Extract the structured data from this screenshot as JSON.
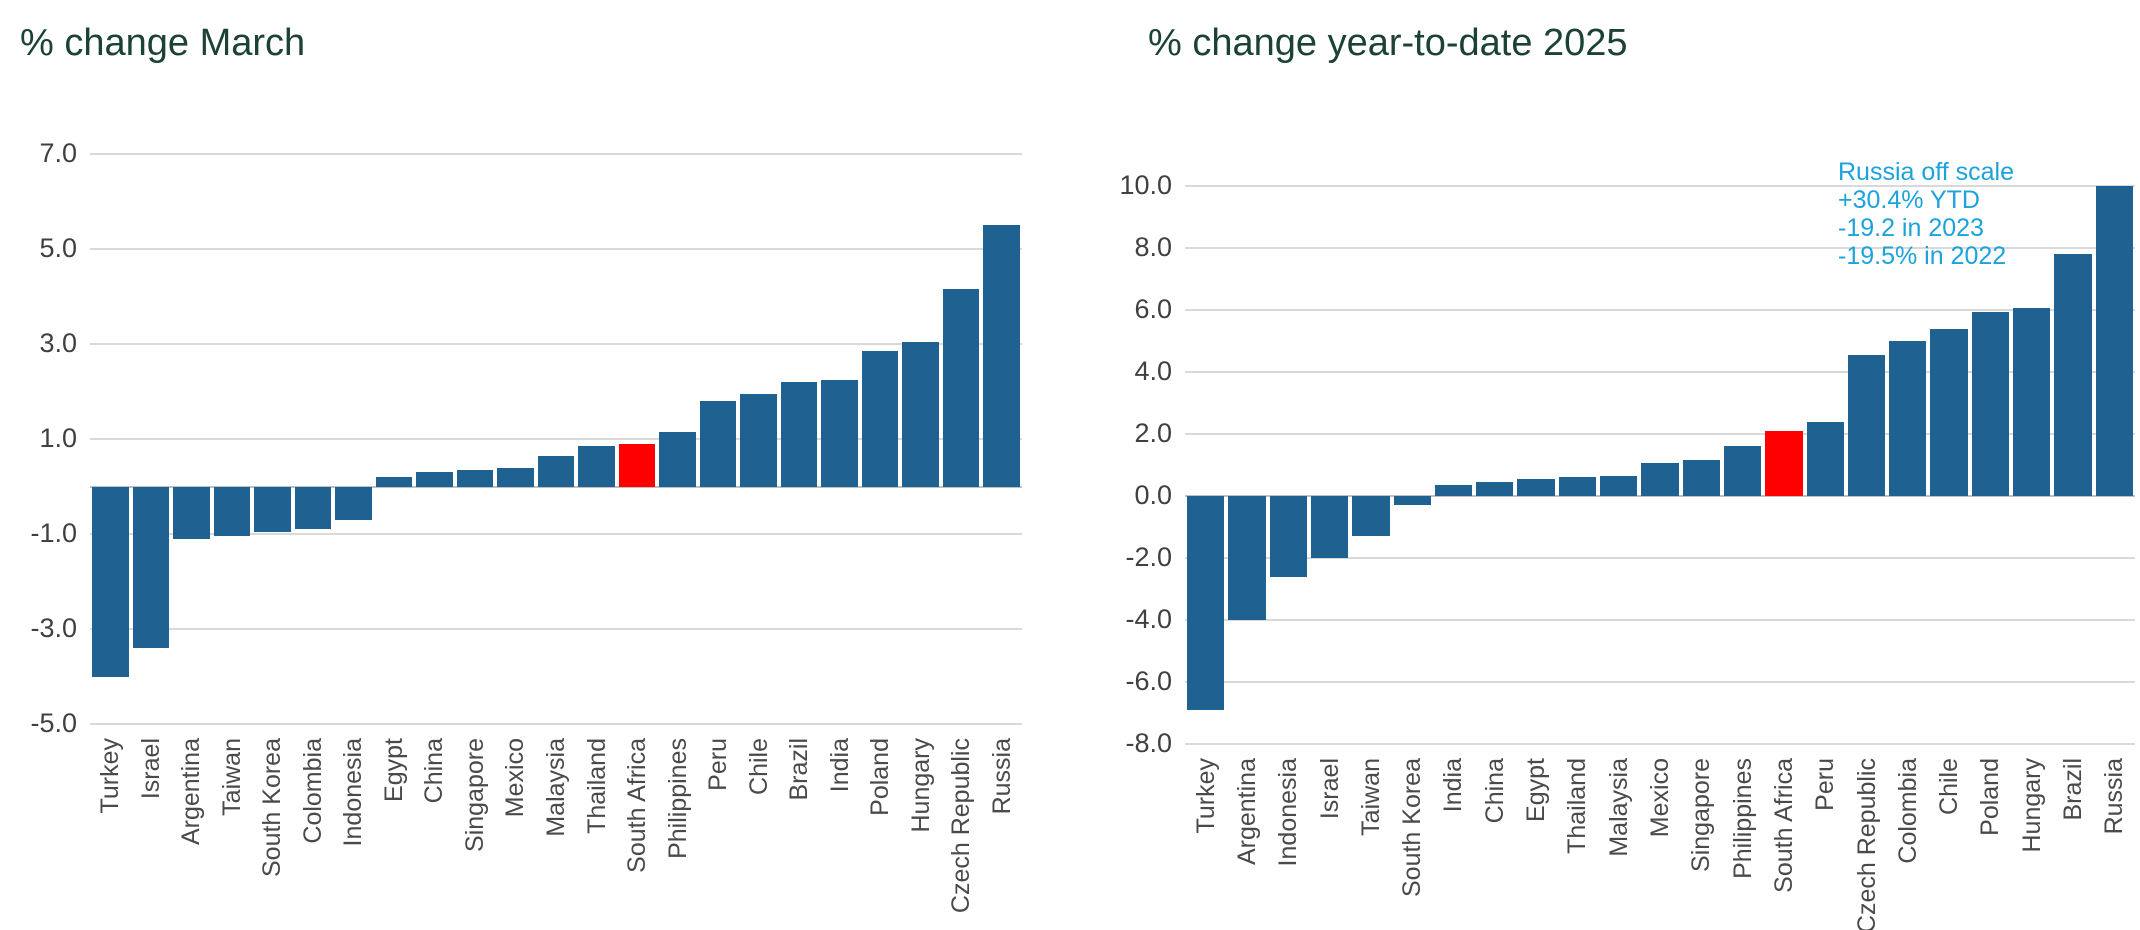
{
  "page": {
    "background": "#ffffff",
    "title_color": "#1c4233",
    "axis_text_color": "#404040",
    "category_text_color": "#4a4a4a",
    "gridline_color": "#d9d9d9",
    "zero_line_color": "#c0c0c0"
  },
  "chart_data": [
    {
      "type": "bar",
      "title": "% change March",
      "categories": [
        "Turkey",
        "Israel",
        "Argentina",
        "Taiwan",
        "South Korea",
        "Colombia",
        "Indonesia",
        "Egypt",
        "China",
        "Singapore",
        "Mexico",
        "Malaysia",
        "Thailand",
        "South Africa",
        "Philippines",
        "Peru",
        "Chile",
        "Brazil",
        "India",
        "Poland",
        "Hungary",
        "Czech Republic",
        "Russia"
      ],
      "values": [
        -4.0,
        -3.4,
        -1.1,
        -1.05,
        -0.95,
        -0.9,
        -0.7,
        0.2,
        0.3,
        0.35,
        0.4,
        0.65,
        0.85,
        0.9,
        1.15,
        1.8,
        1.95,
        2.2,
        2.25,
        2.85,
        3.05,
        4.15,
        5.5
      ],
      "highlight_category": "South Africa",
      "bar_color": "#1f6191",
      "highlight_color": "#fe0000",
      "ylim": [
        -5.0,
        7.0
      ],
      "yticks": [
        7.0,
        5.0,
        3.0,
        1.0,
        -1.0,
        -3.0,
        -5.0
      ],
      "ytick_labels": [
        "7.0",
        "5.0",
        "3.0",
        "1.0",
        "-1.0",
        "-3.0",
        "-5.0"
      ],
      "xlabel": "",
      "ylabel": "",
      "grid": true,
      "legend": "none"
    },
    {
      "type": "bar",
      "title": "% change year-to-date 2025",
      "categories": [
        "Turkey",
        "Argentina",
        "Indonesia",
        "Israel",
        "Taiwan",
        "South Korea",
        "India",
        "China",
        "Egypt",
        "Thailand",
        "Malaysia",
        "Mexico",
        "Singapore",
        "Philippines",
        "South Africa",
        "Peru",
        "Czech Republic",
        "Colombia",
        "Chile",
        "Poland",
        "Hungary",
        "Brazil",
        "Russia"
      ],
      "values": [
        -6.9,
        -4.0,
        -2.6,
        -2.0,
        -1.3,
        -0.3,
        0.35,
        0.45,
        0.55,
        0.6,
        0.65,
        1.05,
        1.15,
        1.6,
        2.1,
        2.4,
        4.55,
        5.0,
        5.4,
        5.95,
        6.05,
        7.8,
        10.0
      ],
      "highlight_category": "South Africa",
      "bar_color": "#1f6191",
      "highlight_color": "#fe0000",
      "ylim": [
        -8.0,
        10.0
      ],
      "yticks": [
        10.0,
        8.0,
        6.0,
        4.0,
        2.0,
        0.0,
        -2.0,
        -4.0,
        -6.0,
        -8.0
      ],
      "ytick_labels": [
        "10.0",
        "8.0",
        "6.0",
        "4.0",
        "2.0",
        "0.0",
        "-2.0",
        "-4.0",
        "-6.0",
        "-8.0"
      ],
      "xlabel": "",
      "ylabel": "",
      "grid": true,
      "legend": "none",
      "clipped_bar": {
        "category": "Russia",
        "displayed_value": 10.0
      },
      "annotation": {
        "color": "#1ca2dc",
        "lines": [
          "Russia off scale",
          "+30.4% YTD",
          "-19.2 in 2023",
          "-19.5% in 2022"
        ]
      }
    }
  ]
}
